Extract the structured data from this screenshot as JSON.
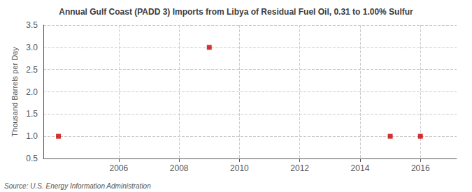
{
  "chart_data": {
    "type": "scatter",
    "title": "Annual Gulf Coast (PADD 3) Imports from Libya of Residual Fuel Oil, 0.31 to 1.00% Sulfur",
    "ylabel": "Thousand Barrels per Day",
    "source": "Source: U.S. Energy Information Administration",
    "x": [
      2004,
      2009,
      2015,
      2016
    ],
    "values": [
      1.0,
      3.0,
      1.0,
      1.0
    ],
    "color": "#cc0000",
    "marker": "square",
    "xlim": [
      2003.5,
      2017.2
    ],
    "xticks": [
      2006,
      2008,
      2010,
      2012,
      2014,
      2016
    ],
    "ylim": [
      0.5,
      3.5
    ],
    "yticks": [
      0.5,
      {
        "value": 1,
        "label": "1.0"
      },
      1.5,
      {
        "value": 2,
        "label": "2.0"
      },
      2.5,
      {
        "value": 3,
        "label": "3.0"
      },
      3.5
    ],
    "grid": true
  }
}
